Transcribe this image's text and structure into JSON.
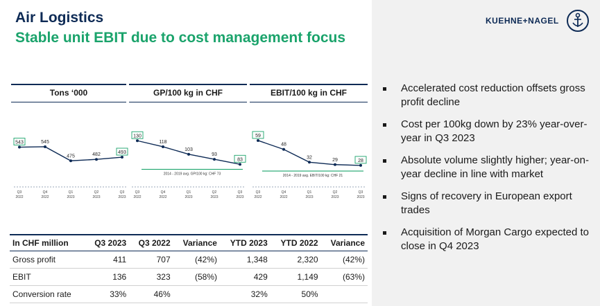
{
  "header": {
    "title": "Air Logistics",
    "subtitle": "Stable unit EBIT due to cost management focus"
  },
  "logo": {
    "text": "KUEHNE+NAGEL"
  },
  "colors": {
    "navy": "#0d2a55",
    "green": "#1aa36b",
    "panel": "#f1f1f1"
  },
  "bullets": [
    "Accelerated cost reduction offsets gross profit decline",
    "Cost per 100kg down by 23% year-over-year in Q3 2023",
    "Absolute volume slightly higher; year-on-year decline in line with market",
    "Signs of recovery in European export trades",
    "Acquisition of Morgan Cargo expected to close in Q4 2023"
  ],
  "chart_data": [
    {
      "type": "line",
      "title": "Tons ‘000",
      "categories": [
        [
          "Q3",
          "2022"
        ],
        [
          "Q4",
          "2022"
        ],
        [
          "Q1",
          "2023"
        ],
        [
          "Q2",
          "2023"
        ],
        [
          "Q3",
          "2023"
        ]
      ],
      "values": [
        543,
        545,
        475,
        482,
        493
      ],
      "boxed_labels": [
        0,
        4
      ]
    },
    {
      "type": "line",
      "title": "GP/100 kg in CHF",
      "categories": [
        [
          "Q3",
          "2022"
        ],
        [
          "Q4",
          "2022"
        ],
        [
          "Q1",
          "2023"
        ],
        [
          "Q2",
          "2023"
        ],
        [
          "Q3",
          "2023"
        ]
      ],
      "values": [
        130,
        118,
        103,
        93,
        83
      ],
      "boxed_labels": [
        0,
        4
      ],
      "reference": {
        "label": "2014 - 2019 avg. GP/100 kg: CHF 73",
        "value": 73
      }
    },
    {
      "type": "line",
      "title": "EBIT/100 kg in CHF",
      "categories": [
        [
          "Q3",
          "2022"
        ],
        [
          "Q4",
          "2022"
        ],
        [
          "Q1",
          "2023"
        ],
        [
          "Q2",
          "2023"
        ],
        [
          "Q3",
          "2023"
        ]
      ],
      "values": [
        59,
        48,
        32,
        29,
        28
      ],
      "boxed_labels": [
        0,
        4
      ],
      "reference": {
        "label": "2014 - 2019 avg. EBIT/100 kg: CHF 21",
        "value": 21
      }
    }
  ],
  "table": {
    "headers": [
      "In CHF million",
      "Q3 2023",
      "Q3 2022",
      "Variance",
      "YTD 2023",
      "YTD 2022",
      "Variance"
    ],
    "rows": [
      [
        "Gross profit",
        "411",
        "707",
        "(42%)",
        "1,348",
        "2,320",
        "(42%)"
      ],
      [
        "EBIT",
        "136",
        "323",
        "(58%)",
        "429",
        "1,149",
        "(63%)"
      ],
      [
        "Conversion rate",
        "33%",
        "46%",
        "",
        "32%",
        "50%",
        ""
      ]
    ]
  }
}
